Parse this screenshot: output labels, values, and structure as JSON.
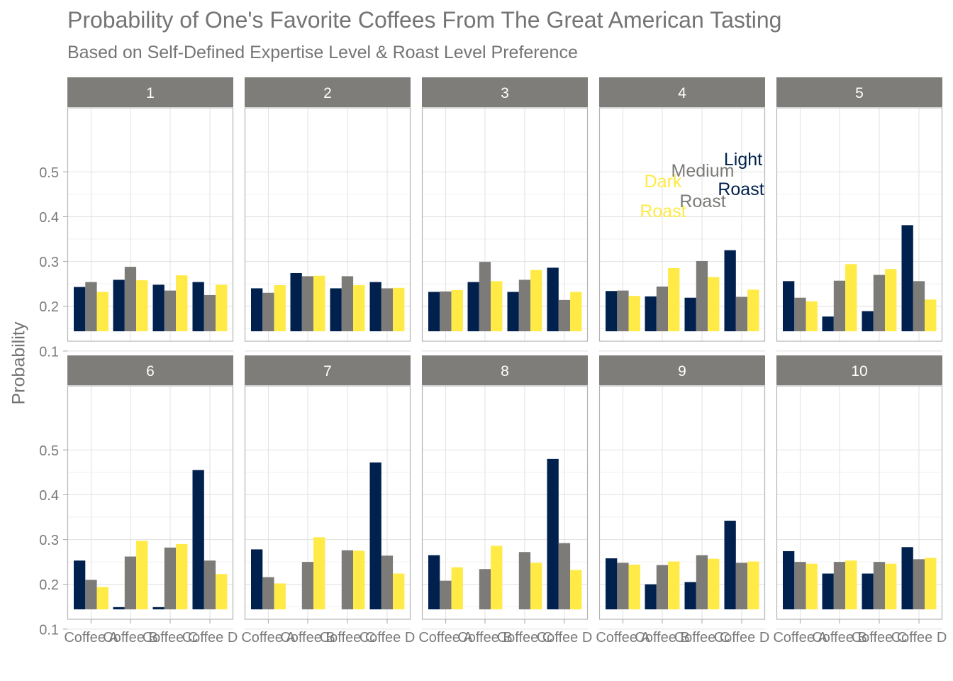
{
  "title": "Probability of One's Favorite Coffees From The Great American Tasting",
  "subtitle": "Based on Self-Defined Expertise Level & Roast Level Preference",
  "chart_data": {
    "type": "bar",
    "title": "Probability of One's Favorite Coffees From The Great American Tasting",
    "subtitle": "Based on Self-Defined Expertise Level & Roast Level Preference",
    "xlabel": "",
    "ylabel": "Probability",
    "ylim": [
      0,
      0.5
    ],
    "yticks": [
      0.1,
      0.2,
      0.3,
      0.4,
      0.5
    ],
    "grid": true,
    "legend": "none (direct labels in panel 4)",
    "categories": [
      "Coffee A",
      "Coffee B",
      "Coffee C",
      "Coffee D"
    ],
    "category_tick_labels": [
      "Coffee A",
      "Coffee B",
      "Coffee C",
      "Coffee D"
    ],
    "series_colors": {
      "Light Roast": "#00204D",
      "Medium Roast": "#7C7B78",
      "Dark Roast": "#FFEA46"
    },
    "direct_labels": [
      {
        "text": "Light",
        "series": "Light Roast",
        "panel": "4"
      },
      {
        "text": "Roast",
        "series": "Light Roast",
        "panel": "4"
      },
      {
        "text": "Medium",
        "series": "Medium Roast",
        "panel": "4"
      },
      {
        "text": "Roast",
        "series": "Medium Roast",
        "panel": "4"
      },
      {
        "text": "Dark",
        "series": "Dark Roast",
        "panel": "4"
      },
      {
        "text": "Roast",
        "series": "Dark Roast",
        "panel": "4"
      }
    ],
    "panels": [
      {
        "label": "1",
        "series": [
          {
            "key": "Light Roast",
            "values": [
              0.243,
              0.259,
              0.248,
              0.254
            ]
          },
          {
            "key": "Medium Roast",
            "values": [
              0.254,
              0.288,
              0.235,
              0.225
            ]
          },
          {
            "key": "Dark Roast",
            "values": [
              0.232,
              0.258,
              0.269,
              0.248
            ]
          }
        ]
      },
      {
        "label": "2",
        "series": [
          {
            "key": "Light Roast",
            "values": [
              0.24,
              0.274,
              0.24,
              0.254
            ]
          },
          {
            "key": "Medium Roast",
            "values": [
              0.23,
              0.267,
              0.267,
              0.24
            ]
          },
          {
            "key": "Dark Roast",
            "values": [
              0.247,
              0.268,
              0.247,
              0.241
            ]
          }
        ]
      },
      {
        "label": "3",
        "series": [
          {
            "key": "Light Roast",
            "values": [
              0.232,
              0.254,
              0.232,
              0.286
            ]
          },
          {
            "key": "Medium Roast",
            "values": [
              0.233,
              0.299,
              0.259,
              0.214
            ]
          },
          {
            "key": "Dark Roast",
            "values": [
              0.236,
              0.256,
              0.281,
              0.232
            ]
          }
        ]
      },
      {
        "label": "4",
        "series": [
          {
            "key": "Light Roast",
            "values": [
              0.234,
              0.222,
              0.219,
              0.325
            ]
          },
          {
            "key": "Medium Roast",
            "values": [
              0.235,
              0.244,
              0.301,
              0.221
            ]
          },
          {
            "key": "Dark Roast",
            "values": [
              0.223,
              0.285,
              0.265,
              0.237
            ]
          }
        ]
      },
      {
        "label": "5",
        "series": [
          {
            "key": "Light Roast",
            "values": [
              0.256,
              0.177,
              0.189,
              0.381
            ]
          },
          {
            "key": "Medium Roast",
            "values": [
              0.219,
              0.257,
              0.27,
              0.256
            ]
          },
          {
            "key": "Dark Roast",
            "values": [
              0.211,
              0.294,
              0.283,
              0.215
            ]
          }
        ]
      },
      {
        "label": "6",
        "series": [
          {
            "key": "Light Roast",
            "values": [
              0.253,
              0.149,
              0.149,
              0.455
            ]
          },
          {
            "key": "Medium Roast",
            "values": [
              0.21,
              0.262,
              0.282,
              0.253
            ]
          },
          {
            "key": "Dark Roast",
            "values": [
              0.194,
              0.297,
              0.29,
              0.223
            ]
          }
        ]
      },
      {
        "label": "7",
        "series": [
          {
            "key": "Light Roast",
            "values": [
              0.278,
              0.114,
              0.14,
              0.472
            ]
          },
          {
            "key": "Medium Roast",
            "values": [
              0.216,
              0.25,
              0.276,
              0.264
            ]
          },
          {
            "key": "Dark Roast",
            "values": [
              0.202,
              0.305,
              0.275,
              0.224
            ]
          }
        ]
      },
      {
        "label": "8",
        "series": [
          {
            "key": "Light Roast",
            "values": [
              0.265,
              0.131,
              0.128,
              0.48
            ]
          },
          {
            "key": "Medium Roast",
            "values": [
              0.208,
              0.234,
              0.272,
              0.292
            ]
          },
          {
            "key": "Dark Roast",
            "values": [
              0.238,
              0.286,
              0.248,
              0.232
            ]
          }
        ]
      },
      {
        "label": "9",
        "series": [
          {
            "key": "Light Roast",
            "values": [
              0.258,
              0.2,
              0.205,
              0.342
            ]
          },
          {
            "key": "Medium Roast",
            "values": [
              0.248,
              0.243,
              0.265,
              0.248
            ]
          },
          {
            "key": "Dark Roast",
            "values": [
              0.244,
              0.251,
              0.257,
              0.251
            ]
          }
        ]
      },
      {
        "label": "10",
        "series": [
          {
            "key": "Light Roast",
            "values": [
              0.274,
              0.224,
              0.224,
              0.283
            ]
          },
          {
            "key": "Medium Roast",
            "values": [
              0.25,
              0.25,
              0.25,
              0.256
            ]
          },
          {
            "key": "Dark Roast",
            "values": [
              0.246,
              0.253,
              0.246,
              0.259
            ]
          }
        ]
      }
    ]
  }
}
